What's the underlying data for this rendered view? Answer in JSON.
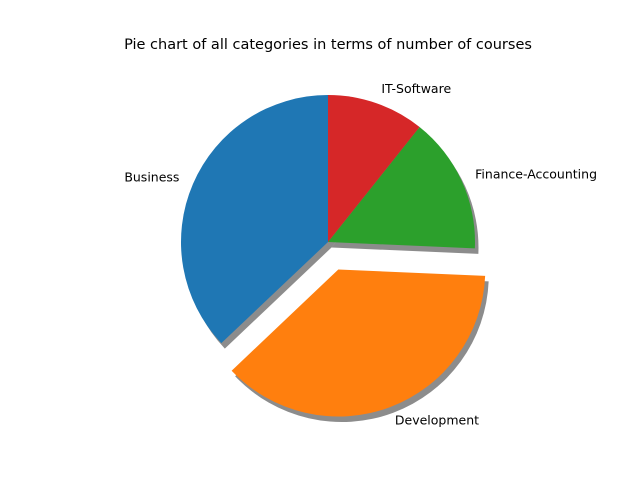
{
  "chart_data": {
    "type": "pie",
    "title": "Pie chart of all categories in terms of number of courses",
    "start_angle_deg": 90,
    "direction": "counterclockwise",
    "shadow": true,
    "slices": [
      {
        "label": "Business",
        "value": 1195,
        "color": "#1f77b4",
        "explode": 0
      },
      {
        "label": "Development",
        "value": 1200,
        "color": "#ff7f0e",
        "explode": 0.2
      },
      {
        "label": "Finance-Accounting",
        "value": 483,
        "color": "#2ca02c",
        "explode": 0
      },
      {
        "label": "IT-Software",
        "value": 345,
        "color": "#d62728",
        "explode": 0
      }
    ]
  }
}
